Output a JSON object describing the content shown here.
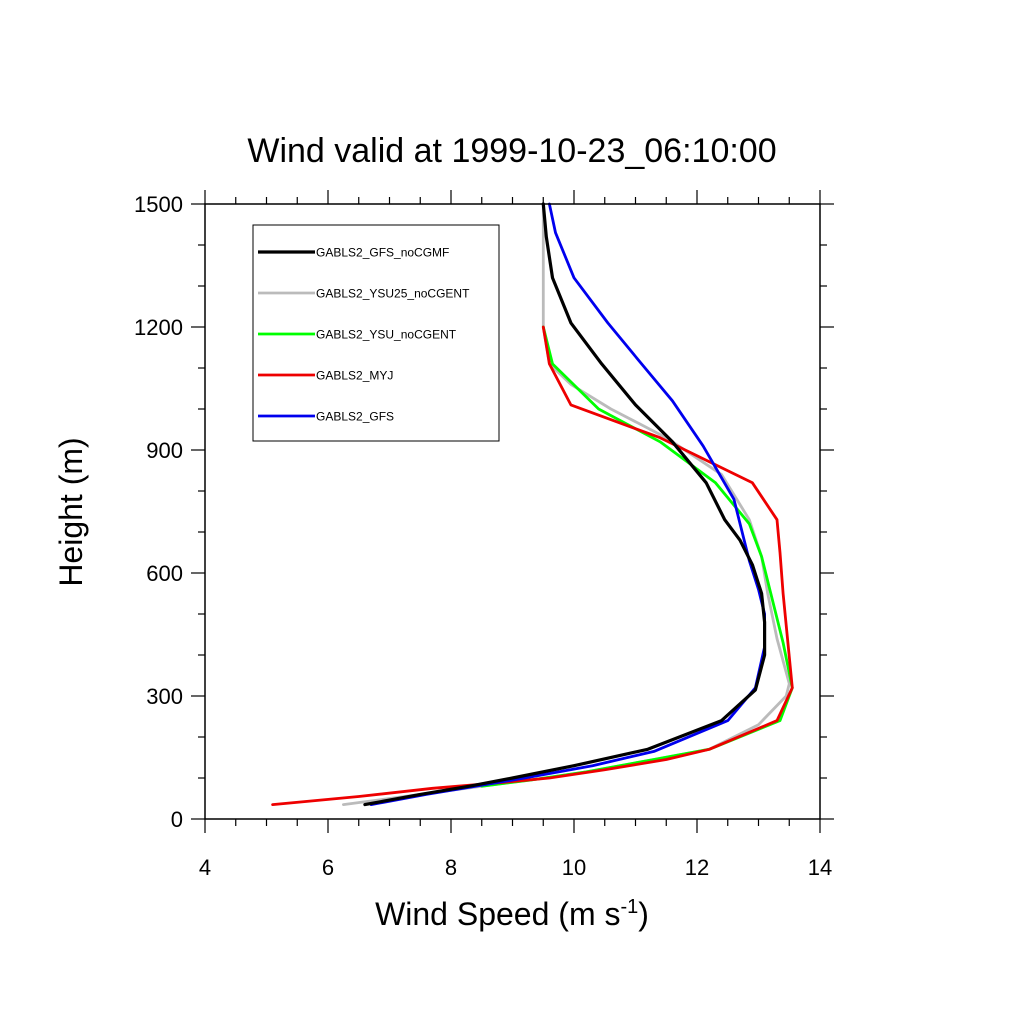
{
  "chart_data": {
    "type": "line",
    "title": "Wind valid at 1999-10-23_06:10:00",
    "xlabel": "Wind Speed (m s",
    "xlabel_sup": "-1",
    "xlabel_end": ")",
    "ylabel": "Height (m)",
    "xlim": [
      4,
      14
    ],
    "ylim": [
      0,
      1500
    ],
    "x_ticks": [
      "4",
      "6",
      "8",
      "10",
      "12",
      "14"
    ],
    "y_ticks": [
      "0",
      "300",
      "600",
      "900",
      "1200",
      "1500"
    ],
    "grid": false,
    "legend_position": "top-left",
    "series": [
      {
        "name": "GABLS2_GFS_noCGMF",
        "color": "#000000",
        "points": [
          [
            6.6,
            35
          ],
          [
            7.5,
            60
          ],
          [
            8.3,
            80
          ],
          [
            9.0,
            100
          ],
          [
            10.0,
            130
          ],
          [
            11.2,
            170
          ],
          [
            12.4,
            240
          ],
          [
            12.95,
            315
          ],
          [
            13.1,
            400
          ],
          [
            13.1,
            480
          ],
          [
            13.05,
            550
          ],
          [
            12.9,
            620
          ],
          [
            12.7,
            680
          ],
          [
            12.45,
            730
          ],
          [
            12.15,
            820
          ],
          [
            11.6,
            920
          ],
          [
            11.0,
            1010
          ],
          [
            10.45,
            1110
          ],
          [
            9.95,
            1210
          ],
          [
            9.65,
            1320
          ],
          [
            9.55,
            1420
          ],
          [
            9.5,
            1500
          ]
        ]
      },
      {
        "name": "GABLS2_YSU25_noCGENT",
        "color": "#bbbbbb",
        "points": [
          [
            6.25,
            35
          ],
          [
            7.5,
            60
          ],
          [
            8.5,
            80
          ],
          [
            9.3,
            95
          ],
          [
            10.2,
            115
          ],
          [
            11.3,
            145
          ],
          [
            12.2,
            170
          ],
          [
            13.0,
            230
          ],
          [
            13.45,
            300
          ],
          [
            13.5,
            330
          ],
          [
            13.3,
            440
          ],
          [
            13.15,
            550
          ],
          [
            13.05,
            640
          ],
          [
            12.85,
            730
          ],
          [
            12.4,
            840
          ],
          [
            11.5,
            930
          ],
          [
            10.6,
            1000
          ],
          [
            9.95,
            1060
          ],
          [
            9.6,
            1110
          ],
          [
            9.5,
            1200
          ],
          [
            9.5,
            1300
          ],
          [
            9.5,
            1500
          ]
        ]
      },
      {
        "name": "GABLS2_YSU_noCGENT",
        "color": "#00ff00",
        "points": [
          [
            8.5,
            80
          ],
          [
            9.3,
            95
          ],
          [
            10.2,
            115
          ],
          [
            11.3,
            145
          ],
          [
            12.2,
            170
          ],
          [
            13.35,
            240
          ],
          [
            13.55,
            320
          ],
          [
            13.4,
            430
          ],
          [
            13.2,
            550
          ],
          [
            13.05,
            640
          ],
          [
            12.85,
            720
          ],
          [
            12.3,
            820
          ],
          [
            11.4,
            920
          ],
          [
            10.4,
            1000
          ],
          [
            9.65,
            1110
          ],
          [
            9.5,
            1200
          ]
        ]
      },
      {
        "name": "GABLS2_MYJ",
        "color": "#ee0000",
        "points": [
          [
            5.1,
            35
          ],
          [
            6.5,
            55
          ],
          [
            7.7,
            75
          ],
          [
            8.9,
            90
          ],
          [
            9.6,
            100
          ],
          [
            10.5,
            120
          ],
          [
            11.5,
            145
          ],
          [
            12.2,
            170
          ],
          [
            13.3,
            240
          ],
          [
            13.55,
            320
          ],
          [
            13.4,
            550
          ],
          [
            13.35,
            650
          ],
          [
            13.3,
            730
          ],
          [
            12.9,
            820
          ],
          [
            11.4,
            930
          ],
          [
            9.95,
            1010
          ],
          [
            9.6,
            1110
          ],
          [
            9.5,
            1200
          ]
        ]
      },
      {
        "name": "GABLS2_GFS",
        "color": "#0000ee",
        "points": [
          [
            6.7,
            35
          ],
          [
            7.6,
            60
          ],
          [
            8.4,
            80
          ],
          [
            9.2,
            100
          ],
          [
            10.3,
            130
          ],
          [
            11.3,
            165
          ],
          [
            12.5,
            240
          ],
          [
            12.95,
            320
          ],
          [
            13.1,
            420
          ],
          [
            13.1,
            500
          ],
          [
            13.0,
            560
          ],
          [
            12.85,
            630
          ],
          [
            12.6,
            780
          ],
          [
            12.1,
            910
          ],
          [
            11.6,
            1020
          ],
          [
            11.1,
            1110
          ],
          [
            10.55,
            1210
          ],
          [
            10.0,
            1320
          ],
          [
            9.7,
            1430
          ],
          [
            9.6,
            1500
          ]
        ]
      }
    ]
  }
}
